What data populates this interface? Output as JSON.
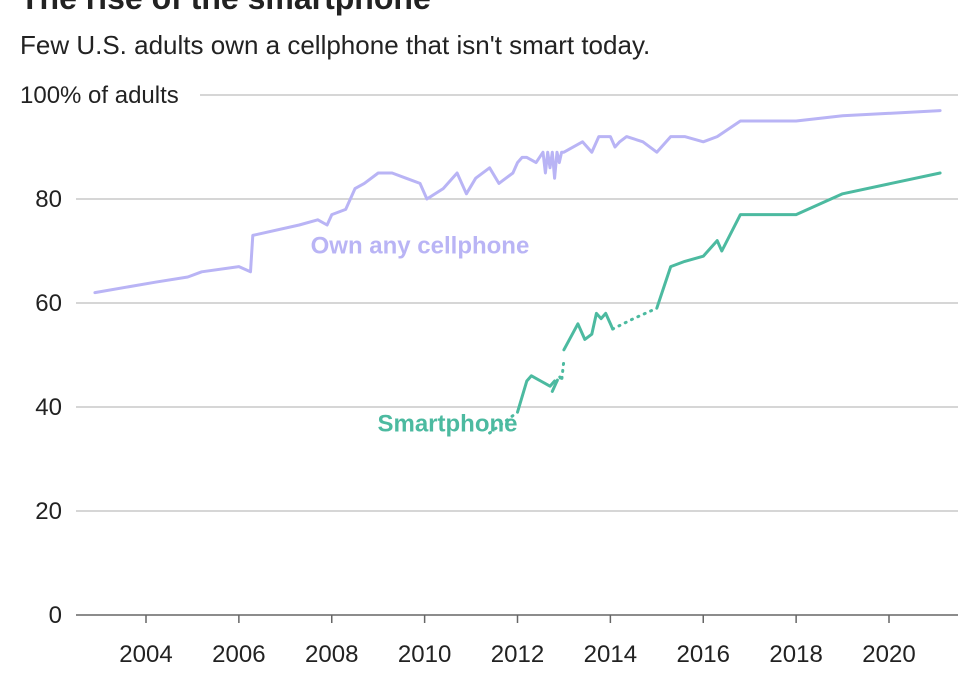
{
  "chart_data": {
    "type": "line",
    "title": "The rise of the smartphone",
    "subtitle": "Few U.S. adults own a cellphone that isn't smart today.",
    "ylabel": "100% of adults",
    "xlim": [
      2002.5,
      2021.5
    ],
    "ylim": [
      0,
      100
    ],
    "yticks": [
      {
        "value": 0,
        "label": "0"
      },
      {
        "value": 20,
        "label": "20"
      },
      {
        "value": 40,
        "label": "40"
      },
      {
        "value": 60,
        "label": "60"
      },
      {
        "value": 80,
        "label": "80"
      },
      {
        "value": 100,
        "label": "100% of adults"
      }
    ],
    "xticks": [
      {
        "value": 2004,
        "label": "2004"
      },
      {
        "value": 2006,
        "label": "2006"
      },
      {
        "value": 2008,
        "label": "2008"
      },
      {
        "value": 2010,
        "label": "2010"
      },
      {
        "value": 2012,
        "label": "2012"
      },
      {
        "value": 2014,
        "label": "2014"
      },
      {
        "value": 2016,
        "label": "2016"
      },
      {
        "value": 2018,
        "label": "2018"
      },
      {
        "value": 2020,
        "label": "2020"
      }
    ],
    "series": [
      {
        "name": "Own any cellphone",
        "color": "#b9b4f5",
        "label_pos": [
          2009.9,
          69.5
        ],
        "x": [
          2002.9,
          2004.2,
          2004.9,
          2005.2,
          2006.0,
          2006.25,
          2006.3,
          2007.3,
          2007.7,
          2007.9,
          2008.0,
          2008.3,
          2008.5,
          2008.7,
          2009.0,
          2009.3,
          2009.6,
          2009.9,
          2010.05,
          2010.4,
          2010.7,
          2010.9,
          2011.1,
          2011.4,
          2011.6,
          2011.9,
          2012.0,
          2012.1,
          2012.2,
          2012.4,
          2012.55,
          2012.6,
          2012.65,
          2012.7,
          2012.75,
          2012.8,
          2012.85,
          2012.9,
          2012.95,
          2013.0,
          2013.4,
          2013.6,
          2013.75,
          2013.85,
          2014.0,
          2014.1,
          2014.2,
          2014.35,
          2014.7,
          2015.0,
          2015.3,
          2015.6,
          2016.0,
          2016.3,
          2016.8,
          2018.0,
          2019.0,
          2021.1
        ],
        "y": [
          62,
          64,
          65,
          66,
          67,
          66,
          73,
          75,
          76,
          75,
          77,
          78,
          82,
          83,
          85,
          85,
          84,
          83,
          80,
          82,
          85,
          81,
          84,
          86,
          83,
          85,
          87,
          88,
          88,
          87,
          89,
          85,
          89,
          86,
          89,
          84,
          89,
          87,
          89,
          89,
          91,
          89,
          92,
          92,
          92,
          90,
          91,
          92,
          91,
          89,
          92,
          92,
          91,
          92,
          95,
          95,
          96,
          97
        ]
      },
      {
        "name": "Smartphone",
        "color": "#4cbaa0",
        "label_pos": [
          2012.0,
          35.3
        ],
        "segments": [
          {
            "style": "dotted",
            "x": [
              2011.4,
              2012.0
            ],
            "y": [
              35,
              39
            ]
          },
          {
            "style": "solid",
            "x": [
              2012.0,
              2012.2,
              2012.3,
              2012.5,
              2012.7,
              2012.8
            ],
            "y": [
              39,
              45,
              46,
              45,
              44,
              45
            ]
          },
          {
            "style": "solid",
            "x": [
              2012.75,
              2012.85
            ],
            "y": [
              43,
              45
            ]
          },
          {
            "style": "dotted",
            "x": [
              2012.85,
              2012.9,
              2012.95,
              2013.0
            ],
            "y": [
              45,
              46,
              45,
              49
            ]
          },
          {
            "style": "solid",
            "x": [
              2013.0,
              2013.3,
              2013.45,
              2013.6,
              2013.7,
              2013.8,
              2013.9,
              2014.0,
              2014.05
            ],
            "y": [
              51,
              56,
              53,
              54,
              58,
              57,
              58,
              56,
              55
            ]
          },
          {
            "style": "dotted",
            "x": [
              2014.05,
              2014.5,
              2015.0
            ],
            "y": [
              55,
              57,
              59
            ]
          },
          {
            "style": "solid",
            "x": [
              2015.0,
              2015.3,
              2015.6,
              2016.0,
              2016.3,
              2016.4,
              2016.8,
              2018.0,
              2019.0,
              2021.1
            ],
            "y": [
              59,
              67,
              68,
              69,
              72,
              70,
              77,
              77,
              81,
              85
            ]
          }
        ]
      }
    ]
  }
}
